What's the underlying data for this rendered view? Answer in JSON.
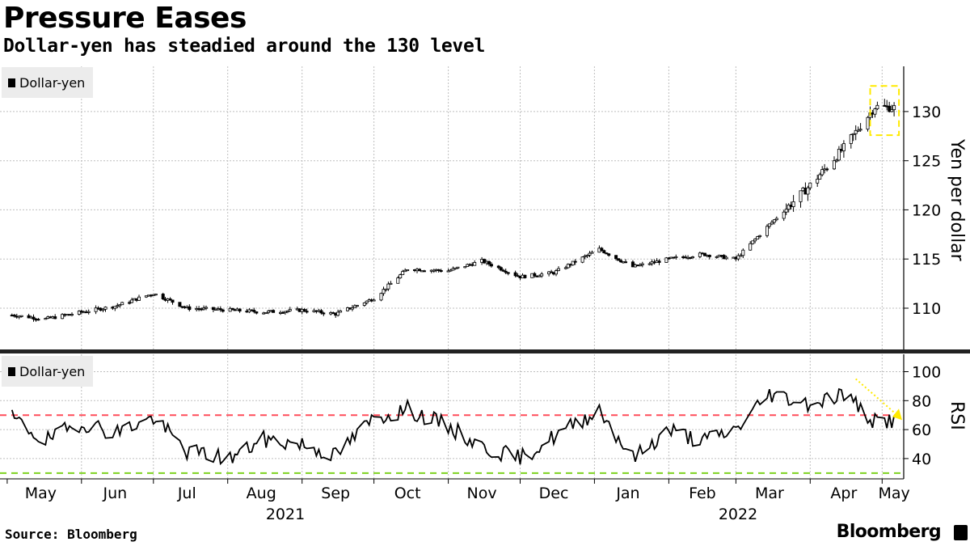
{
  "title": "Pressure Eases",
  "subtitle": "Dollar-yen has steadied around the 130 level",
  "source": "Source: Bloomberg",
  "brand": "Bloomberg",
  "colors": {
    "candle": "#000000",
    "grid": "#bfbfbf",
    "overbought": "#ff4d5a",
    "oversold": "#7ed321",
    "highlight": "#ffea00"
  },
  "chart_data": [
    {
      "type": "candlestick",
      "legend": [
        "Dollar-yen"
      ],
      "ylabel": "Yen per dollar",
      "ylim": [
        105.8,
        134.6
      ],
      "yticks": [
        110,
        115,
        120,
        125,
        130
      ],
      "x_month_labels": [
        "May",
        "Jun",
        "Jul",
        "Aug",
        "Sep",
        "Oct",
        "Nov",
        "Dec",
        "Jan",
        "Feb",
        "Mar",
        "Apr",
        "May"
      ],
      "x_year_labels": [
        "2021",
        "2022"
      ],
      "grid": true,
      "legend_position": "top-left",
      "series": [
        {
          "name": "Dollar-yen",
          "dates": [
            "2021-05-03",
            "2021-05-17",
            "2021-06-01",
            "2021-06-15",
            "2021-07-01",
            "2021-07-15",
            "2021-08-02",
            "2021-08-16",
            "2021-09-01",
            "2021-09-15",
            "2021-10-01",
            "2021-10-15",
            "2021-11-01",
            "2021-11-15",
            "2021-12-01",
            "2021-12-15",
            "2022-01-03",
            "2022-01-17",
            "2022-02-01",
            "2022-02-15",
            "2022-03-01",
            "2022-03-15",
            "2022-04-01",
            "2022-04-15",
            "2022-04-28",
            "2022-05-06"
          ],
          "close": [
            109.3,
            108.9,
            109.6,
            110.2,
            111.5,
            110.0,
            109.8,
            109.6,
            109.8,
            109.4,
            111.0,
            114.0,
            113.8,
            114.8,
            113.2,
            113.6,
            116.0,
            114.2,
            115.0,
            115.5,
            115.0,
            118.5,
            122.5,
            126.3,
            130.5,
            130.4
          ]
        }
      ],
      "annotations": [
        "dashed box around late-April to May 2022 candles near 130"
      ]
    },
    {
      "type": "line",
      "legend": [
        "Dollar-yen"
      ],
      "ylabel": "RSI",
      "ylim": [
        26,
        112
      ],
      "yticks": [
        40,
        60,
        80,
        100
      ],
      "reference_lines": [
        70,
        30
      ],
      "grid": true,
      "legend_position": "top-left",
      "series": [
        {
          "name": "Dollar-yen",
          "dates": [
            "2021-05-03",
            "2021-05-17",
            "2021-06-01",
            "2021-06-15",
            "2021-07-01",
            "2021-07-15",
            "2021-08-02",
            "2021-08-16",
            "2021-09-01",
            "2021-09-15",
            "2021-10-01",
            "2021-10-15",
            "2021-11-01",
            "2021-11-15",
            "2021-12-01",
            "2021-12-15",
            "2022-01-03",
            "2022-01-17",
            "2022-02-01",
            "2022-02-15",
            "2022-03-01",
            "2022-03-15",
            "2022-04-01",
            "2022-04-15",
            "2022-04-28",
            "2022-05-06"
          ],
          "values": [
            68,
            52,
            65,
            58,
            68,
            45,
            40,
            53,
            50,
            42,
            68,
            74,
            62,
            48,
            40,
            55,
            74,
            40,
            60,
            52,
            60,
            85,
            78,
            85,
            65,
            67
          ]
        }
      ],
      "annotations": [
        "dotted arrow pointing down-right to latest RSI reading"
      ]
    }
  ]
}
